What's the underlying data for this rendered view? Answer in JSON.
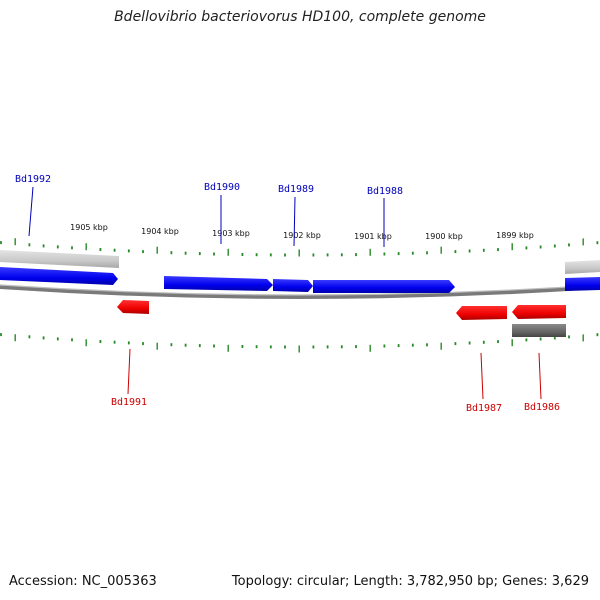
{
  "title": "Bdellovibrio bacteriovorus HD100, complete genome",
  "footer": {
    "accession": "Accession: NC_005363",
    "stats": "Topology: circular; Length: 3,782,950 bp; Genes: 3,629"
  },
  "colors": {
    "forward_gene": "#0000ee",
    "reverse_gene": "#ee0000",
    "forward_label": "#0000bb",
    "reverse_label": "#cc0000",
    "tick": "#2a8a2a",
    "backbone": "#888888"
  },
  "kbp_labels": [
    "1905 kbp",
    "1904 kbp",
    "1903 kbp",
    "1902 kbp",
    "1901 kbp",
    "1900 kbp",
    "1899 kbp"
  ],
  "genes_forward": [
    {
      "label": "Bd1992"
    },
    {
      "label": "Bd1990"
    },
    {
      "label": "Bd1989"
    },
    {
      "label": "Bd1988"
    }
  ],
  "genes_reverse": [
    {
      "label": "Bd1991"
    },
    {
      "label": "Bd1987"
    },
    {
      "label": "Bd1986"
    }
  ]
}
